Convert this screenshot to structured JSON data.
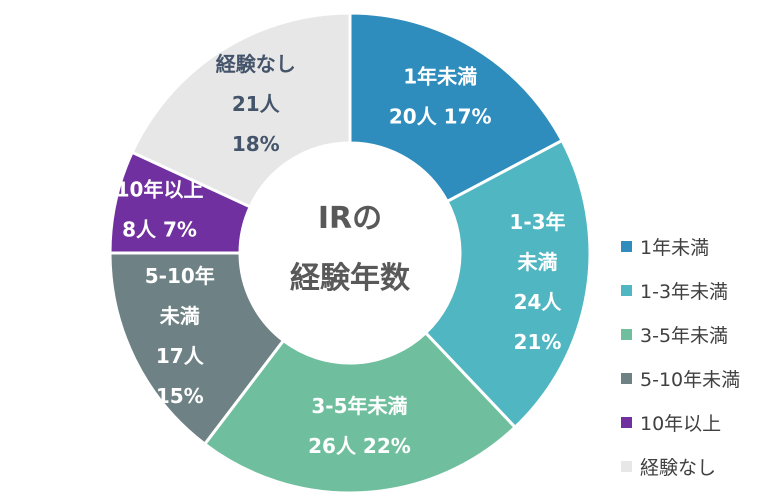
{
  "chart_data": {
    "type": "pie",
    "subtype": "donut",
    "center_title": [
      "IRの",
      "経験年数"
    ],
    "categories": [
      "1年未満",
      "1-3年未満",
      "3-5年未満",
      "5-10年未満",
      "10年以上",
      "経験なし"
    ],
    "values": [
      20,
      24,
      26,
      17,
      8,
      21
    ],
    "unit": "人",
    "percents": [
      17,
      21,
      22,
      15,
      7,
      18
    ],
    "colors": [
      "#2E8DBC",
      "#4FB6C2",
      "#6FBF9E",
      "#6E8184",
      "#7030A0",
      "#E7E7E7"
    ],
    "label_colors": [
      "#ffffff",
      "#ffffff",
      "#ffffff",
      "#ffffff",
      "#ffffff",
      "#44546A"
    ],
    "data_labels": [
      [
        "1年未満",
        "20人 17%"
      ],
      [
        "1-3年",
        "未満",
        "24人",
        "21%"
      ],
      [
        "3-5年未満",
        "26人 22%"
      ],
      [
        "5-10年",
        "未満",
        "17人",
        "15%"
      ],
      [
        "10年以上",
        "8人 7%"
      ],
      [
        "経験なし",
        "21人",
        "18%"
      ]
    ],
    "legend": {
      "position": "right",
      "entries": [
        "1年未満",
        "1-3年未満",
        "3-5年未満",
        "5-10年未満",
        "10年以上",
        "経験なし"
      ]
    }
  }
}
